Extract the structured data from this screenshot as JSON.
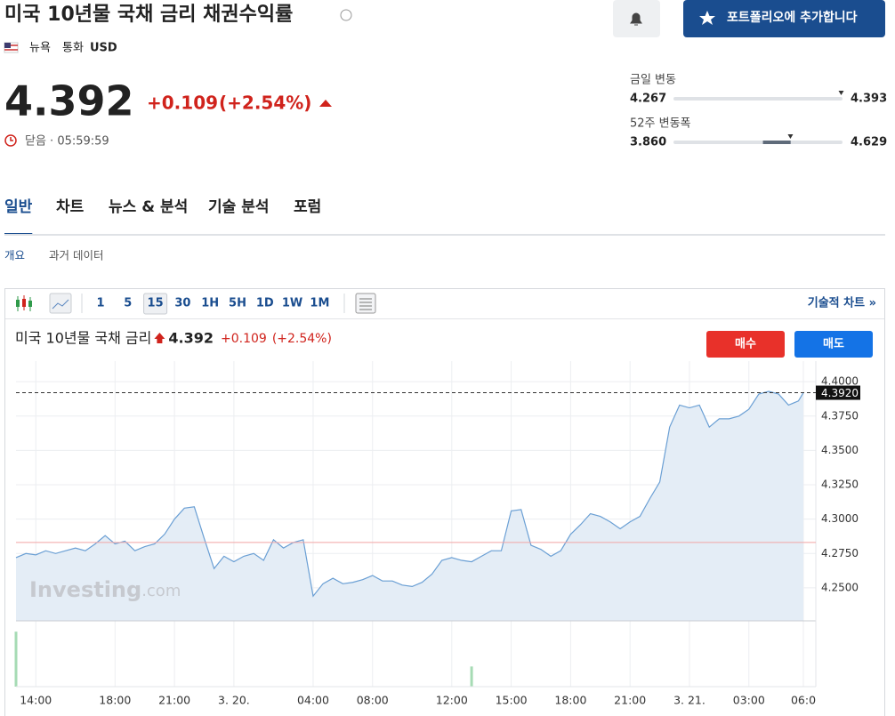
{
  "header": {
    "title": "미국 10년물 국채 금리 채권수익률",
    "location": "뉴욕",
    "currency_label": "통화",
    "currency": "USD",
    "portfolio_button": "포트폴리오에 추가합니다"
  },
  "quote": {
    "price": 4.392,
    "change": "+0.109",
    "change_pct": "(+2.54%)",
    "status": "닫음 · 05:59:59"
  },
  "ranges": [
    {
      "label": "금일 변동",
      "low": 4.267,
      "high": 4.393
    },
    {
      "label": "52주 변동폭",
      "low": {
        "value": 3.86,
        "label": "3.860"
      },
      "high": 4.629
    }
  ],
  "tabs": [
    "일반",
    "차트",
    "뉴스 & 분석",
    "기술 분석",
    "포럼"
  ],
  "subtabs": [
    "개요",
    "과거 데이터"
  ],
  "toolbar": {
    "intervals": [
      "1",
      "5",
      "15",
      "30",
      "1H",
      "5H",
      "1D",
      "1W",
      "1M"
    ],
    "active_interval": 2,
    "technical_chart_link": "기술적 차트 »"
  },
  "chart_data": {
    "type": "line",
    "title": "미국 10년물 국채 금리",
    "last_price": 4.392,
    "change": "+0.109",
    "change_pct": "(+2.54%)",
    "buy": "매수",
    "sell": "매도",
    "brand": "Investing",
    "brand_suffix": ".com",
    "x": [
      0,
      2,
      4,
      6,
      8,
      10,
      12,
      14,
      16,
      18,
      20,
      22,
      24,
      26,
      28,
      30,
      32,
      34,
      36,
      38,
      40,
      42,
      44,
      46,
      48,
      50,
      52,
      54,
      56,
      58,
      60,
      62,
      64,
      66,
      68,
      70,
      72,
      74,
      76,
      78,
      80,
      82,
      84,
      86,
      88,
      90,
      92,
      94,
      96,
      98,
      100,
      102,
      104,
      106,
      108,
      110,
      112,
      114,
      116,
      118,
      120,
      122,
      124,
      126,
      128,
      130,
      132,
      134,
      136,
      138,
      140,
      142,
      144,
      146,
      148,
      150,
      152,
      154,
      156,
      158,
      159
    ],
    "values": [
      4.272,
      4.275,
      4.274,
      4.277,
      4.275,
      4.277,
      4.279,
      4.277,
      4.282,
      4.288,
      4.282,
      4.284,
      4.277,
      4.28,
      4.282,
      4.289,
      4.3,
      4.308,
      4.309,
      4.286,
      4.264,
      4.273,
      4.269,
      4.273,
      4.275,
      4.27,
      4.285,
      4.279,
      4.283,
      4.285,
      4.244,
      4.253,
      4.257,
      4.253,
      4.254,
      4.256,
      4.259,
      4.255,
      4.255,
      4.252,
      4.251,
      4.254,
      4.26,
      4.27,
      4.272,
      4.27,
      4.269,
      4.273,
      4.277,
      4.277,
      4.306,
      4.307,
      4.281,
      4.278,
      4.273,
      4.277,
      4.289,
      4.296,
      4.304,
      4.302,
      4.298,
      4.293,
      4.298,
      4.302,
      4.315,
      4.327,
      4.367,
      4.383,
      4.381,
      4.383,
      4.367,
      4.373,
      4.373,
      4.375,
      4.38,
      4.391,
      4.393,
      4.391,
      4.383,
      4.386,
      4.392
    ],
    "color": "#6a9fd4",
    "fill": "#e4edf6",
    "last_label": {
      "value": 4.392,
      "label": "4.3920"
    },
    "prev_close": 4.283,
    "prev_close_color": "#f2a5a5",
    "xlim": [
      0,
      159
    ],
    "ylim": [
      4.226,
      4.415
    ],
    "yticks": [
      {
        "value": 4.25,
        "label": "4.2500"
      },
      {
        "value": 4.275,
        "label": "4.2750"
      },
      {
        "value": 4.3,
        "label": "4.3000"
      },
      {
        "value": 4.325,
        "label": "4.3250"
      },
      {
        "value": 4.35,
        "label": "4.3500"
      },
      {
        "value": 4.375,
        "label": "4.3750"
      },
      {
        "value": 4.4,
        "label": "4.4000"
      }
    ],
    "xticks": [
      {
        "value": 4,
        "label": "14:00"
      },
      {
        "value": 20,
        "label": "18:00"
      },
      {
        "value": 32,
        "label": "21:00"
      },
      {
        "value": 44,
        "label": "3. 20."
      },
      {
        "value": 60,
        "label": "04:00"
      },
      {
        "value": 72,
        "label": "08:00"
      },
      {
        "value": 88,
        "label": "12:00"
      },
      {
        "value": 100,
        "label": "15:00"
      },
      {
        "value": 112,
        "label": "18:00"
      },
      {
        "value": 124,
        "label": "21:00"
      },
      {
        "value": 136,
        "label": "3. 21."
      },
      {
        "value": 148,
        "label": "03:00"
      },
      {
        "value": 159,
        "label": "06:0"
      }
    ],
    "volume": {
      "x": [
        0,
        92
      ],
      "values": [
        60,
        22
      ],
      "ylim": [
        0,
        65
      ],
      "color": "#a6dbb4"
    },
    "grid": true
  }
}
